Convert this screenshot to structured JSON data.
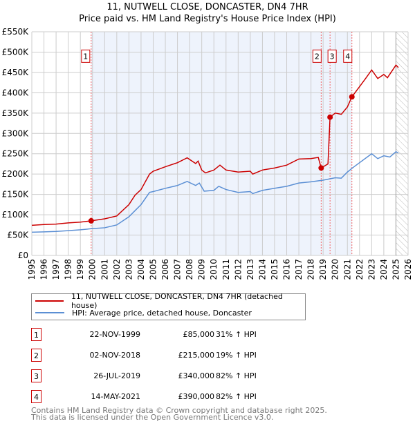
{
  "chart_data": {
    "type": "line",
    "title": "11, NUTWELL CLOSE, DONCASTER, DN4 7HR",
    "subtitle": "Price paid vs. HM Land Registry's House Price Index (HPI)",
    "xlim": [
      1995,
      2026
    ],
    "ylim": [
      0,
      550000
    ],
    "x_ticks": [
      "1995",
      "1996",
      "1997",
      "1998",
      "1999",
      "2000",
      "2001",
      "2002",
      "2003",
      "2004",
      "2005",
      "2006",
      "2007",
      "2008",
      "2009",
      "2010",
      "2011",
      "2012",
      "2013",
      "2014",
      "2015",
      "2016",
      "2017",
      "2018",
      "2019",
      "2020",
      "2021",
      "2022",
      "2023",
      "2024",
      "2025",
      "2026"
    ],
    "y_ticks": [
      {
        "v": 0,
        "label": "£0"
      },
      {
        "v": 50000,
        "label": "£50K"
      },
      {
        "v": 100000,
        "label": "£100K"
      },
      {
        "v": 150000,
        "label": "£150K"
      },
      {
        "v": 200000,
        "label": "£200K"
      },
      {
        "v": 250000,
        "label": "£250K"
      },
      {
        "v": 300000,
        "label": "£300K"
      },
      {
        "v": 350000,
        "label": "£350K"
      },
      {
        "v": 400000,
        "label": "£400K"
      },
      {
        "v": 450000,
        "label": "£450K"
      },
      {
        "v": 500000,
        "label": "£500K"
      },
      {
        "v": 550000,
        "label": "£550K"
      }
    ],
    "grid": true,
    "shaded_range": [
      1999.89,
      2021.37
    ],
    "future_hatch_from": 2025.0,
    "series": [
      {
        "name": "11, NUTWELL CLOSE, DONCASTER, DN4 7HR (detached house)",
        "color": "#cc0000",
        "x": [
          1995,
          1996,
          1997,
          1998,
          1999,
          1999.89,
          2001,
          2002,
          2003,
          2003.5,
          2004,
          2004.7,
          2005,
          2006,
          2007,
          2007.8,
          2008.5,
          2008.7,
          2009,
          2009.3,
          2010,
          2010.5,
          2011,
          2012,
          2013,
          2013.2,
          2014,
          2015,
          2016,
          2017,
          2018,
          2018.6,
          2018.84,
          2019.4,
          2019.57,
          2020,
          2020.5,
          2021,
          2021.37,
          2022,
          2022.5,
          2023,
          2023.5,
          2024,
          2024.3,
          2025,
          2025.2
        ],
        "y": [
          74000,
          76000,
          77000,
          80000,
          82000,
          85000,
          90000,
          97000,
          125000,
          148000,
          162000,
          200000,
          207000,
          218000,
          228000,
          240000,
          226000,
          232000,
          210000,
          203000,
          210000,
          222000,
          210000,
          205000,
          207000,
          200000,
          210000,
          215000,
          222000,
          237000,
          238000,
          241000,
          215000,
          225000,
          340000,
          350000,
          347000,
          365000,
          390000,
          415000,
          435000,
          456000,
          435000,
          445000,
          437000,
          468000,
          462000
        ]
      },
      {
        "name": "HPI: Average price, detached house, Doncaster",
        "color": "#5b8fd4",
        "x": [
          1995,
          1996,
          1997,
          1998,
          1999,
          2000,
          2001,
          2002,
          2003,
          2003.5,
          2004,
          2004.7,
          2005,
          2006,
          2007,
          2007.8,
          2008.5,
          2008.8,
          2009.2,
          2010,
          2010.4,
          2011,
          2012,
          2013,
          2013.2,
          2014,
          2015,
          2016,
          2017,
          2018,
          2019,
          2020,
          2020.5,
          2021,
          2021.5,
          2022,
          2023,
          2023.5,
          2024,
          2024.5,
          2025,
          2025.2
        ],
        "y": [
          57000,
          58000,
          59000,
          61000,
          63000,
          66000,
          68000,
          75000,
          95000,
          110000,
          125000,
          155000,
          157000,
          165000,
          172000,
          182000,
          172000,
          178000,
          158000,
          160000,
          170000,
          162000,
          155000,
          157000,
          152000,
          160000,
          165000,
          170000,
          178000,
          181000,
          185000,
          191000,
          190000,
          205000,
          217000,
          228000,
          250000,
          238000,
          245000,
          242000,
          255000,
          252000
        ]
      }
    ],
    "sales": [
      {
        "n": "1",
        "x": 1999.89,
        "y": 85000
      },
      {
        "n": "2",
        "x": 2018.84,
        "y": 215000
      },
      {
        "n": "3",
        "x": 2019.57,
        "y": 340000
      },
      {
        "n": "4",
        "x": 2021.37,
        "y": 390000
      }
    ]
  },
  "legend": {
    "property": "11, NUTWELL CLOSE, DONCASTER, DN4 7HR (detached house)",
    "hpi": "HPI: Average price, detached house, Doncaster"
  },
  "sales_table": [
    {
      "n": "1",
      "date": "22-NOV-1999",
      "price": "£85,000",
      "hpi": "31% ↑ HPI"
    },
    {
      "n": "2",
      "date": "02-NOV-2018",
      "price": "£215,000",
      "hpi": "19% ↑ HPI"
    },
    {
      "n": "3",
      "date": "26-JUL-2019",
      "price": "£340,000",
      "hpi": "82% ↑ HPI"
    },
    {
      "n": "4",
      "date": "14-MAY-2021",
      "price": "£390,000",
      "hpi": "82% ↑ HPI"
    }
  ],
  "footer": {
    "line1": "Contains HM Land Registry data © Crown copyright and database right 2025.",
    "line2": "This data is licensed under the Open Government Licence v3.0."
  }
}
